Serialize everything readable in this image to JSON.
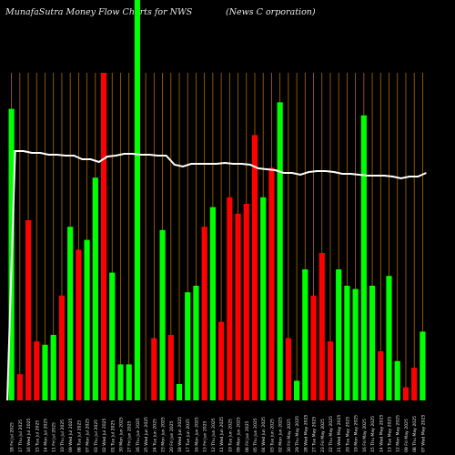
{
  "page": {
    "title_left": "MunafaSutra  Money Flow  Charts for NWS",
    "title_right": "(News C                        orporation)"
  },
  "chart_data": {
    "type": "bar",
    "title": "MunafaSutra  Money Flow  Charts for NWS",
    "subtitle": "(News C                        orporation)",
    "categories": [
      "18 Fri Jul 2025",
      "17 Thu Jul 2025",
      "16 Wed Jul 2025",
      "15 Tue Jul 2025",
      "14 Mon Jul 2025",
      "11 Fri Jul 2025",
      "10 Thu Jul 2025",
      "09 Wed Jul 2025",
      "08 Tue Jul 2025",
      "07 Mon Jul 2025",
      "03 Thu Jul 2025",
      "02 Wed Jul 2025",
      "01 Tue Jul 2025",
      "30 Mon Jun 2025",
      "27 Fri Jun 2025",
      "26 Thu Jun 2025",
      "25 Wed Jun 2025",
      "24 Tue Jun 2025",
      "23 Mon Jun 2025",
      "20 Fri Jun 2025",
      "18 Wed Jun 2025",
      "17 Tue Jun 2025",
      "16 Mon Jun 2025",
      "13 Fri Jun 2025",
      "12 Thu Jun 2025",
      "11 Wed Jun 2025",
      "10 Tue Jun 2025",
      "09 Mon Jun 2025",
      "06 Fri Jun 2025",
      "05 Thu Jun 2025",
      "04 Wed Jun 2025",
      "03 Tue Jun 2025",
      "02 Mon Jun 2025",
      "30 Fri May 2025",
      "29 Thu May 2025",
      "28 Wed May 2025",
      "27 Tue May 2025",
      "23 Fri May 2025",
      "22 Thu May 2025",
      "21 Wed May 2025",
      "20 Tue May 2025",
      "19 Mon May 2025",
      "16 Fri May 2025",
      "15 Thu May 2025",
      "14 Wed May 2025",
      "13 Tue May 2025",
      "12 Mon May 2025",
      "09 Fri May 2025",
      "08 Thu May 2025",
      "07 Wed May 2025"
    ],
    "bar_colors": [
      "green",
      "red",
      "red",
      "red",
      "green",
      "green",
      "red",
      "green",
      "red",
      "green",
      "green",
      "red",
      "green",
      "green",
      "green",
      "green",
      "green",
      "red",
      "green",
      "red",
      "green",
      "green",
      "green",
      "red",
      "green",
      "red",
      "red",
      "red",
      "red",
      "red",
      "green",
      "red",
      "green",
      "red",
      "green",
      "green",
      "red",
      "red",
      "red",
      "green",
      "green",
      "green",
      "green",
      "green",
      "red",
      "green",
      "green",
      "red",
      "red",
      "green"
    ],
    "values": [
      0.89,
      0.08,
      0.55,
      0.18,
      0.17,
      0.2,
      0.32,
      0.53,
      0.46,
      0.49,
      0.68,
      1.0,
      0.39,
      0.11,
      0.11,
      1.0,
      0.0,
      0.19,
      0.52,
      0.2,
      0.05,
      0.33,
      0.35,
      0.53,
      0.59,
      0.24,
      0.62,
      0.57,
      0.6,
      0.81,
      0.62,
      0.71,
      0.91,
      0.19,
      0.06,
      0.4,
      0.32,
      0.45,
      0.18,
      0.4,
      0.35,
      0.34,
      0.87,
      0.35,
      0.15,
      0.38,
      0.12,
      0.04,
      0.1,
      0.21
    ],
    "price_line": [
      0.39,
      0.39,
      0.37,
      0.37,
      0.35,
      0.35,
      0.34,
      0.34,
      0.3,
      0.3,
      0.27,
      0.33,
      0.34,
      0.36,
      0.36,
      0.35,
      0.35,
      0.34,
      0.34,
      0.24,
      0.22,
      0.25,
      0.25,
      0.25,
      0.25,
      0.26,
      0.25,
      0.25,
      0.24,
      0.2,
      0.19,
      0.18,
      0.15,
      0.15,
      0.13,
      0.16,
      0.17,
      0.17,
      0.16,
      0.14,
      0.14,
      0.13,
      0.12,
      0.12,
      0.12,
      0.11,
      0.09,
      0.11,
      0.11,
      0.15
    ],
    "colors": {
      "up": "#00ff00",
      "down": "#ff0000",
      "gridline": "#b06a00",
      "price_line": "#ffffff",
      "background": "#000000"
    }
  }
}
